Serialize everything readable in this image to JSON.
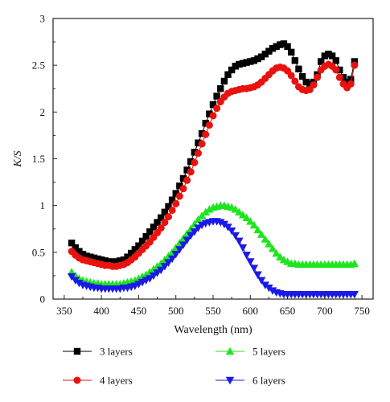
{
  "chart_data": {
    "type": "line",
    "xlabel": "Wavelength (nm)",
    "ylabel": "K/S",
    "xlim": [
      335,
      765
    ],
    "ylim": [
      0,
      3
    ],
    "xticks": [
      350,
      400,
      450,
      500,
      550,
      600,
      650,
      700,
      750
    ],
    "yticks": [
      0,
      0.5,
      1,
      1.5,
      2,
      2.5,
      3
    ],
    "x": [
      360,
      365,
      370,
      375,
      380,
      385,
      390,
      395,
      400,
      405,
      410,
      415,
      420,
      425,
      430,
      435,
      440,
      445,
      450,
      455,
      460,
      465,
      470,
      475,
      480,
      485,
      490,
      495,
      500,
      505,
      510,
      515,
      520,
      525,
      530,
      535,
      540,
      545,
      550,
      555,
      560,
      565,
      570,
      575,
      580,
      585,
      590,
      595,
      600,
      605,
      610,
      615,
      620,
      625,
      630,
      635,
      640,
      645,
      650,
      655,
      660,
      665,
      670,
      675,
      680,
      685,
      690,
      695,
      700,
      705,
      710,
      715,
      720,
      725,
      730,
      735,
      740
    ],
    "series": [
      {
        "name": "3 layers",
        "color": "#000000",
        "marker": "square",
        "values": [
          0.6,
          0.55,
          0.51,
          0.48,
          0.46,
          0.45,
          0.44,
          0.43,
          0.42,
          0.41,
          0.4,
          0.4,
          0.4,
          0.41,
          0.42,
          0.45,
          0.49,
          0.53,
          0.57,
          0.62,
          0.67,
          0.72,
          0.77,
          0.82,
          0.87,
          0.93,
          0.99,
          1.06,
          1.13,
          1.21,
          1.29,
          1.38,
          1.47,
          1.57,
          1.67,
          1.77,
          1.88,
          1.98,
          2.08,
          2.17,
          2.25,
          2.33,
          2.4,
          2.45,
          2.49,
          2.51,
          2.52,
          2.53,
          2.54,
          2.55,
          2.57,
          2.59,
          2.62,
          2.65,
          2.68,
          2.7,
          2.72,
          2.73,
          2.7,
          2.64,
          2.55,
          2.46,
          2.38,
          2.32,
          2.3,
          2.32,
          2.4,
          2.54,
          2.6,
          2.62,
          2.6,
          2.55,
          2.45,
          2.37,
          2.32,
          2.35,
          2.54
        ]
      },
      {
        "name": "4 layers",
        "color": "#e8120e",
        "marker": "circle",
        "values": [
          0.51,
          0.47,
          0.44,
          0.42,
          0.41,
          0.4,
          0.39,
          0.38,
          0.37,
          0.36,
          0.36,
          0.35,
          0.35,
          0.36,
          0.37,
          0.39,
          0.42,
          0.45,
          0.49,
          0.53,
          0.57,
          0.61,
          0.66,
          0.71,
          0.76,
          0.82,
          0.88,
          0.95,
          1.02,
          1.1,
          1.18,
          1.27,
          1.36,
          1.46,
          1.56,
          1.66,
          1.76,
          1.86,
          1.96,
          2.04,
          2.11,
          2.16,
          2.2,
          2.22,
          2.23,
          2.24,
          2.25,
          2.25,
          2.26,
          2.27,
          2.29,
          2.32,
          2.36,
          2.4,
          2.44,
          2.47,
          2.48,
          2.47,
          2.44,
          2.39,
          2.33,
          2.27,
          2.24,
          2.23,
          2.24,
          2.29,
          2.37,
          2.45,
          2.49,
          2.51,
          2.49,
          2.45,
          2.37,
          2.3,
          2.26,
          2.3,
          2.5
        ]
      },
      {
        "name": "5 layers",
        "color": "#1ee61e",
        "marker": "triangle-up",
        "values": [
          0.29,
          0.25,
          0.22,
          0.2,
          0.19,
          0.18,
          0.17,
          0.17,
          0.16,
          0.16,
          0.16,
          0.16,
          0.16,
          0.16,
          0.17,
          0.18,
          0.19,
          0.2,
          0.22,
          0.24,
          0.26,
          0.29,
          0.32,
          0.35,
          0.38,
          0.42,
          0.46,
          0.5,
          0.55,
          0.6,
          0.65,
          0.7,
          0.75,
          0.8,
          0.85,
          0.89,
          0.93,
          0.96,
          0.98,
          0.99,
          1.0,
          1.0,
          0.99,
          0.98,
          0.96,
          0.93,
          0.9,
          0.87,
          0.83,
          0.79,
          0.74,
          0.69,
          0.64,
          0.59,
          0.54,
          0.49,
          0.45,
          0.42,
          0.4,
          0.38,
          0.38,
          0.37,
          0.37,
          0.37,
          0.37,
          0.37,
          0.37,
          0.37,
          0.37,
          0.37,
          0.37,
          0.37,
          0.37,
          0.37,
          0.37,
          0.37,
          0.38
        ]
      },
      {
        "name": "6 layers",
        "color": "#1a1ae6",
        "marker": "triangle-down",
        "values": [
          0.24,
          0.2,
          0.17,
          0.15,
          0.14,
          0.13,
          0.12,
          0.12,
          0.11,
          0.11,
          0.11,
          0.11,
          0.11,
          0.11,
          0.12,
          0.12,
          0.13,
          0.14,
          0.16,
          0.18,
          0.2,
          0.22,
          0.25,
          0.28,
          0.31,
          0.35,
          0.39,
          0.43,
          0.48,
          0.53,
          0.58,
          0.63,
          0.68,
          0.72,
          0.76,
          0.79,
          0.81,
          0.82,
          0.83,
          0.83,
          0.82,
          0.8,
          0.77,
          0.73,
          0.68,
          0.62,
          0.55,
          0.47,
          0.4,
          0.33,
          0.26,
          0.2,
          0.15,
          0.12,
          0.09,
          0.07,
          0.06,
          0.05,
          0.05,
          0.05,
          0.05,
          0.05,
          0.05,
          0.05,
          0.05,
          0.05,
          0.05,
          0.05,
          0.05,
          0.05,
          0.05,
          0.05,
          0.05,
          0.05,
          0.05,
          0.05,
          0.05
        ]
      }
    ],
    "legend": {
      "placement": "bottom",
      "items": [
        "3 layers",
        "4 layers",
        "5 layers",
        "6 layers"
      ]
    }
  }
}
